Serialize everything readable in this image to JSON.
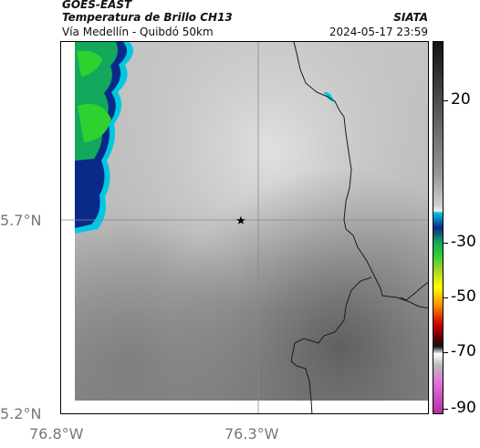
{
  "header": {
    "title": "GOES-EAST",
    "subtitle": "Temperatura de Brillo CH13",
    "route": "Vía Medellín - Quibdó 50km",
    "org": "SIATA",
    "timestamp": "2024-05-17 23:59"
  },
  "axes": {
    "lat_labels": [
      "5.7°N",
      "5.2°N"
    ],
    "lon_labels": [
      "76.8°W",
      "76.3°W"
    ]
  },
  "colorbar": {
    "tick_labels": [
      "20",
      "-30",
      "-50",
      "-70",
      "-90"
    ]
  },
  "colors": {
    "cold_cloud_green": "#22cc22",
    "cold_cloud_blue": "#0a2a8a",
    "cold_cloud_cyan": "#00c8e0"
  },
  "marker": {
    "icon": "star-icon"
  }
}
